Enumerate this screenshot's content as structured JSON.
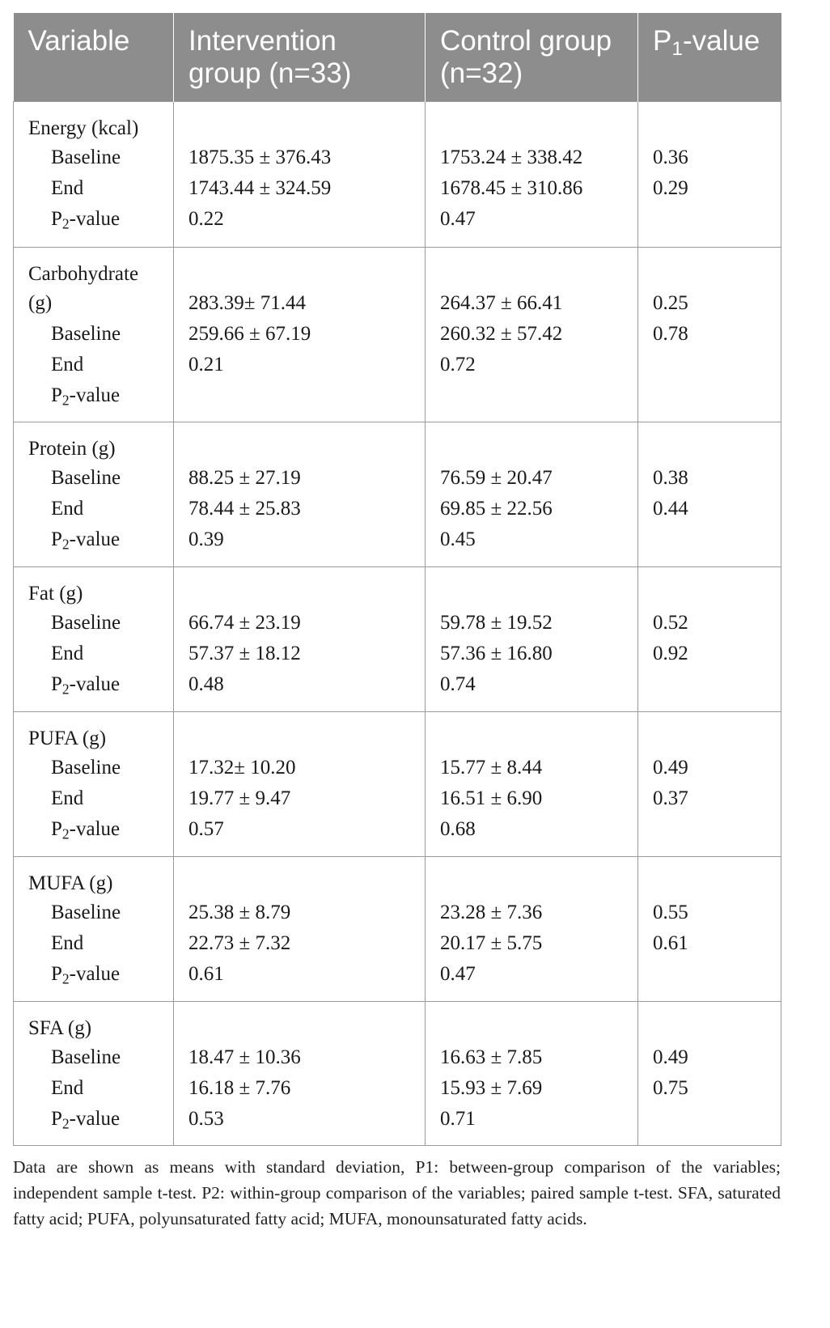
{
  "headers": [
    "Variable",
    "Intervention group (n=33)",
    "Control group (n=32)",
    "P1-value"
  ],
  "header_p1": {
    "p": "P",
    "sub": "1",
    "rest": "-value"
  },
  "p2_label": {
    "p": "P",
    "sub": "2",
    "rest": "-value"
  },
  "groups": [
    {
      "name": "Energy (kcal)",
      "baseline_label": "Baseline",
      "end_label": "End",
      "intervention": [
        "1875.35 ± 376.43",
        "1743.44 ± 324.59",
        "0.22"
      ],
      "control": [
        "1753.24 ± 338.42",
        "1678.45 ± 310.86",
        "0.47"
      ],
      "p1": [
        "0.36",
        "0.29"
      ]
    },
    {
      "name_lines": [
        "Carbohydrate",
        "(g)"
      ],
      "baseline_label": "Baseline",
      "end_label": "End",
      "intervention": [
        "283.39± 71.44",
        "259.66 ± 67.19",
        "0.21"
      ],
      "control": [
        "264.37 ± 66.41",
        "260.32 ± 57.42",
        "0.72"
      ],
      "p1": [
        "0.25",
        "0.78"
      ]
    },
    {
      "name": "Protein (g)",
      "baseline_label": "Baseline",
      "end_label": "End",
      "intervention": [
        "88.25 ± 27.19",
        "78.44 ± 25.83",
        "0.39"
      ],
      "control": [
        "76.59 ± 20.47",
        "69.85 ± 22.56",
        "0.45"
      ],
      "p1": [
        "0.38",
        "0.44"
      ]
    },
    {
      "name": "Fat (g)",
      "baseline_label": "Baseline",
      "end_label": "End",
      "intervention": [
        "66.74 ± 23.19",
        "57.37 ± 18.12",
        "0.48"
      ],
      "control": [
        "59.78 ± 19.52",
        "57.36 ± 16.80",
        "0.74"
      ],
      "p1": [
        "0.52",
        "0.92"
      ]
    },
    {
      "name": "PUFA (g)",
      "baseline_label": "Baseline",
      "end_label": "End",
      "intervention": [
        "17.32± 10.20",
        "19.77 ± 9.47",
        "0.57"
      ],
      "control": [
        "15.77 ± 8.44",
        "16.51 ± 6.90",
        "0.68"
      ],
      "p1": [
        "0.49",
        "0.37"
      ]
    },
    {
      "name": "MUFA (g)",
      "baseline_label": "Baseline",
      "end_label": "End",
      "intervention": [
        "25.38 ± 8.79",
        "22.73 ± 7.32",
        "0.61"
      ],
      "control": [
        "23.28 ± 7.36",
        "20.17 ± 5.75",
        "0.47"
      ],
      "p1": [
        "0.55",
        "0.61"
      ]
    },
    {
      "name": "SFA (g)",
      "baseline_label": "Baseline",
      "end_label": "End",
      "intervention": [
        "18.47 ± 10.36",
        "16.18 ± 7.76",
        "0.53"
      ],
      "control": [
        "16.63 ± 7.85",
        "15.93 ± 7.69",
        "0.71"
      ],
      "p1": [
        "0.49",
        "0.75"
      ]
    }
  ],
  "footnote": "Data are shown as means with standard deviation, P1: between-group comparison of the variables; independent sample t-test. P2: within-group comparison of the variables; paired sample t-test. SFA, saturated fatty acid; PUFA, polyunsaturated fatty acid; MUFA, monounsaturated fatty acids."
}
